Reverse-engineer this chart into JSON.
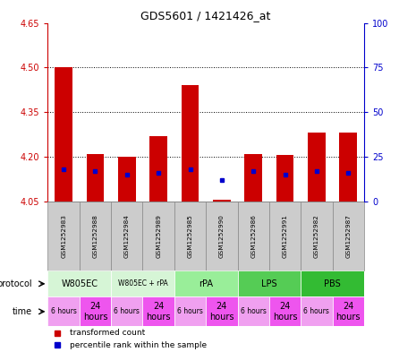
{
  "title": "GDS5601 / 1421426_at",
  "samples": [
    "GSM1252983",
    "GSM1252988",
    "GSM1252984",
    "GSM1252989",
    "GSM1252985",
    "GSM1252990",
    "GSM1252986",
    "GSM1252991",
    "GSM1252982",
    "GSM1252987"
  ],
  "bar_values": [
    4.5,
    4.21,
    4.2,
    4.27,
    4.44,
    4.055,
    4.21,
    4.205,
    4.28,
    4.28
  ],
  "bar_base": 4.05,
  "blue_dot_percentile": [
    18,
    17,
    15,
    16,
    18,
    12,
    17,
    15,
    17,
    16
  ],
  "ylim_left": [
    4.05,
    4.65
  ],
  "ylim_right": [
    0,
    100
  ],
  "yticks_left": [
    4.05,
    4.2,
    4.35,
    4.5,
    4.65
  ],
  "yticks_right": [
    0,
    25,
    50,
    75,
    100
  ],
  "gridlines": [
    4.2,
    4.35,
    4.5
  ],
  "protocols": [
    {
      "label": "W805EC",
      "color": "#d6f5d6",
      "start": 0,
      "end": 2
    },
    {
      "label": "W805EC + rPA",
      "color": "#d6f5d6",
      "start": 2,
      "end": 4
    },
    {
      "label": "rPA",
      "color": "#99ee99",
      "start": 4,
      "end": 6
    },
    {
      "label": "LPS",
      "color": "#55cc55",
      "start": 6,
      "end": 8
    },
    {
      "label": "PBS",
      "color": "#33bb33",
      "start": 8,
      "end": 10
    }
  ],
  "times": [
    "6 hours",
    "24\nhours",
    "6 hours",
    "24\nhours",
    "6 hours",
    "24\nhours",
    "6 hours",
    "24\nhours",
    "6 hours",
    "24\nhours"
  ],
  "time_colors": [
    "#f0a0f0",
    "#ee55ee",
    "#f0a0f0",
    "#ee55ee",
    "#f0a0f0",
    "#ee55ee",
    "#f0a0f0",
    "#ee55ee",
    "#f0a0f0",
    "#ee55ee"
  ],
  "sample_box_color": "#cccccc",
  "bar_color": "#cc0000",
  "dot_color": "#0000cc",
  "bar_width": 0.55,
  "background_color": "#ffffff",
  "left_label_color": "#cc0000",
  "right_label_color": "#0000cc"
}
